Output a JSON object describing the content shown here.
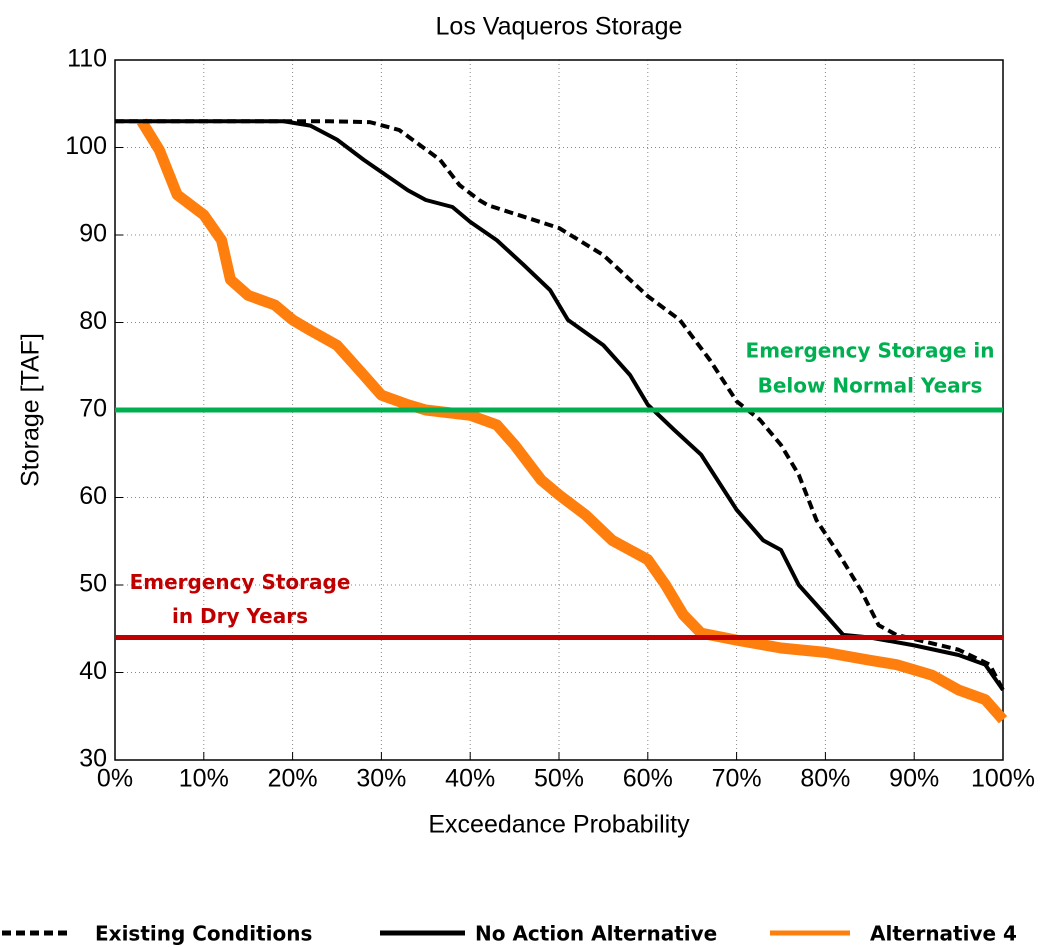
{
  "chart_data": {
    "type": "line",
    "title": "Los Vaqueros Storage",
    "xlabel": "Exceedance Probability",
    "ylabel": "Storage [TAF]",
    "xlim": [
      0,
      100
    ],
    "ylim": [
      30,
      110
    ],
    "xticks": [
      {
        "value": 0,
        "label": "0%"
      },
      {
        "value": 10,
        "label": "10%"
      },
      {
        "value": 20,
        "label": "20%"
      },
      {
        "value": 30,
        "label": "30%"
      },
      {
        "value": 40,
        "label": "40%"
      },
      {
        "value": 50,
        "label": "50%"
      },
      {
        "value": 60,
        "label": "60%"
      },
      {
        "value": 70,
        "label": "70%"
      },
      {
        "value": 80,
        "label": "80%"
      },
      {
        "value": 90,
        "label": "90%"
      },
      {
        "value": 100,
        "label": "100%"
      }
    ],
    "yticks": [
      30,
      40,
      50,
      60,
      70,
      80,
      90,
      100,
      110
    ],
    "grid": true,
    "legend": "bottom",
    "series": [
      {
        "name": "Existing Conditions",
        "color": "#000000",
        "dash": true,
        "x": [
          0,
          24,
          28.7,
          32,
          36.6,
          38.8,
          41,
          42,
          50,
          55,
          60,
          63.6,
          67,
          70,
          72.6,
          75,
          77,
          79,
          81.6,
          84,
          86,
          88,
          95,
          98.5,
          100
        ],
        "values": [
          103,
          103,
          102.9,
          102,
          98.6,
          95.7,
          94,
          93.4,
          90.8,
          87.7,
          83,
          80.3,
          75.7,
          71,
          68.9,
          66,
          62.6,
          57.4,
          53.4,
          49.4,
          45.4,
          44.3,
          42.6,
          40.9,
          38
        ]
      },
      {
        "name": "No Action Alternative",
        "color": "#000000",
        "dash": false,
        "x": [
          0,
          19,
          22,
          25,
          28,
          30,
          33,
          35,
          38,
          40,
          43,
          46,
          49,
          51,
          55,
          58,
          60,
          63,
          66,
          70,
          73,
          75,
          77,
          80,
          82,
          85,
          90,
          95,
          98,
          100
        ],
        "values": [
          103,
          103,
          102.5,
          100.9,
          98.6,
          97.2,
          95.1,
          94,
          93.2,
          91.5,
          89.4,
          86.6,
          83.7,
          80.3,
          77.4,
          74,
          70.6,
          67.7,
          64.9,
          58.6,
          55.1,
          54,
          50,
          46.6,
          44.3,
          44,
          43.1,
          42,
          40.9,
          38
        ]
      },
      {
        "name": "Alternative 4",
        "color": "#ff7f0e",
        "dash": false,
        "x": [
          3,
          5,
          7,
          10,
          12,
          13,
          15,
          18,
          20,
          22,
          25,
          28,
          30,
          33,
          35,
          40,
          43,
          45,
          48,
          50,
          53,
          56,
          60,
          62,
          64,
          66,
          70,
          75,
          80,
          85,
          88,
          92,
          95,
          98,
          100
        ],
        "values": [
          103,
          99.7,
          94.6,
          92.3,
          89.4,
          84.9,
          83.1,
          82,
          80.3,
          79.1,
          77.4,
          74,
          71.7,
          70.6,
          70,
          69.4,
          68.3,
          66,
          62,
          60.3,
          58,
          55.1,
          52.9,
          50,
          46.6,
          44.5,
          43.7,
          42.8,
          42.3,
          41.4,
          40.9,
          39.7,
          38,
          36.9,
          34.6
        ]
      }
    ],
    "reference_lines": [
      {
        "value": 70,
        "color": "#00b050",
        "label": [
          "Emergency Storage in",
          "Below Normal Years"
        ]
      },
      {
        "value": 44,
        "color": "#c00000",
        "label": [
          "Emergency Storage",
          "in Dry Years"
        ]
      }
    ]
  }
}
